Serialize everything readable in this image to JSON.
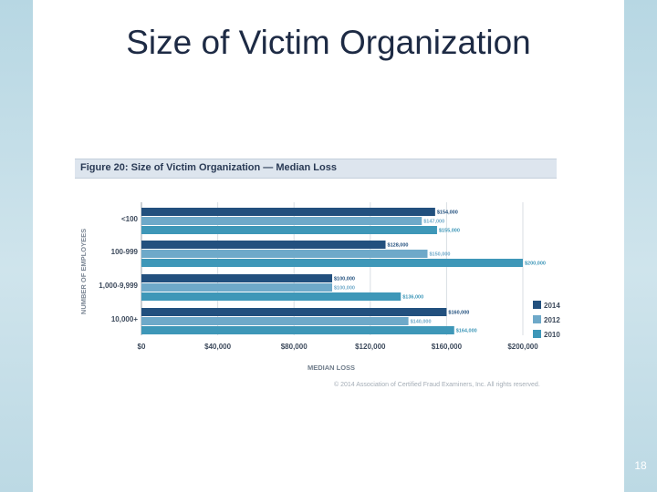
{
  "slide": {
    "title": "Size of Victim Organization",
    "page_number": "18"
  },
  "figure": {
    "title": "Figure 20: Size of Victim Organization — Median Loss",
    "copyright": "© 2014 Association of Certified Fraud Examiners, Inc. All rights reserved."
  },
  "colors": {
    "2014": "#22507e",
    "2012": "#6ea9c9",
    "2010": "#3e97b8"
  },
  "chart_data": {
    "type": "bar",
    "orientation": "horizontal",
    "title": "Figure 20: Size of Victim Organization — Median Loss",
    "xlabel": "MEDIAN LOSS",
    "ylabel": "NUMBER OF EMPLOYEES",
    "categories": [
      "<100",
      "100-999",
      "1,000-9,999",
      "10,000+"
    ],
    "series": [
      {
        "name": "2014",
        "values": [
          154000,
          128000,
          100000,
          160000
        ],
        "labels": [
          "$154,000",
          "$128,000",
          "$100,000",
          "$160,000"
        ]
      },
      {
        "name": "2012",
        "values": [
          147000,
          150000,
          100000,
          140000
        ],
        "labels": [
          "$147,000",
          "$150,000",
          "$100,000",
          "$140,000"
        ]
      },
      {
        "name": "2010",
        "values": [
          155000,
          200000,
          136000,
          164000
        ],
        "labels": [
          "$155,000",
          "$200,000",
          "$136,000",
          "$164,000"
        ]
      }
    ],
    "xlim": [
      0,
      200000
    ],
    "xticks": [
      0,
      40000,
      80000,
      120000,
      160000,
      200000
    ],
    "xtick_labels": [
      "$0",
      "$40,000",
      "$80,000",
      "$120,000",
      "$160,000",
      "$200,000"
    ],
    "grid": true,
    "legend_position": "bottom-right",
    "legend_order": [
      "2014",
      "2012",
      "2010"
    ]
  }
}
